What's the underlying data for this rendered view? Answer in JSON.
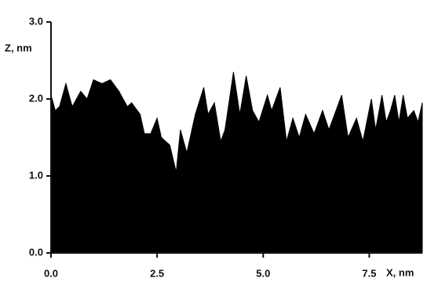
{
  "chart_data": {
    "type": "area",
    "x_label": "X, nm",
    "y_label": "Z, nm",
    "color": "#000000",
    "xlim": [
      0,
      8.75
    ],
    "xticks": [
      {
        "value": 0,
        "label": "0.0"
      },
      {
        "value": 2.5,
        "label": "2.5"
      },
      {
        "value": 5,
        "label": "5.0"
      },
      {
        "value": 7.5,
        "label": "7.5"
      }
    ],
    "ylim": [
      0,
      3
    ],
    "yticks": [
      {
        "value": 0,
        "label": "0.0"
      },
      {
        "value": 1,
        "label": "1.0"
      },
      {
        "value": 2,
        "label": "2.0"
      },
      {
        "value": 3,
        "label": "3.0"
      }
    ],
    "x": [
      0,
      0.1,
      0.2,
      0.35,
      0.5,
      0.7,
      0.85,
      1.0,
      1.2,
      1.4,
      1.6,
      1.8,
      1.9,
      2.1,
      2.2,
      2.35,
      2.5,
      2.6,
      2.8,
      2.95,
      3.05,
      3.2,
      3.4,
      3.6,
      3.7,
      3.85,
      4.0,
      4.1,
      4.3,
      4.45,
      4.6,
      4.75,
      4.9,
      5.1,
      5.2,
      5.4,
      5.55,
      5.7,
      5.85,
      6.0,
      6.2,
      6.4,
      6.55,
      6.85,
      7.0,
      7.2,
      7.35,
      7.55,
      7.65,
      7.8,
      7.9,
      8.0,
      8.1,
      8.2,
      8.3,
      8.4,
      8.55,
      8.65,
      8.75
    ],
    "values": [
      2.05,
      1.85,
      1.9,
      2.2,
      1.9,
      2.1,
      2.0,
      2.25,
      2.2,
      2.25,
      2.1,
      1.9,
      1.95,
      1.8,
      1.55,
      1.55,
      1.75,
      1.5,
      1.4,
      1.05,
      1.6,
      1.3,
      1.8,
      2.15,
      1.8,
      1.95,
      1.45,
      1.6,
      2.35,
      1.8,
      2.3,
      1.85,
      1.7,
      2.05,
      1.85,
      2.15,
      1.45,
      1.75,
      1.5,
      1.8,
      1.55,
      1.85,
      1.6,
      2.05,
      1.5,
      1.75,
      1.45,
      2.0,
      1.6,
      2.05,
      1.7,
      1.85,
      2.05,
      1.7,
      2.05,
      1.75,
      1.85,
      1.7,
      1.95
    ]
  }
}
